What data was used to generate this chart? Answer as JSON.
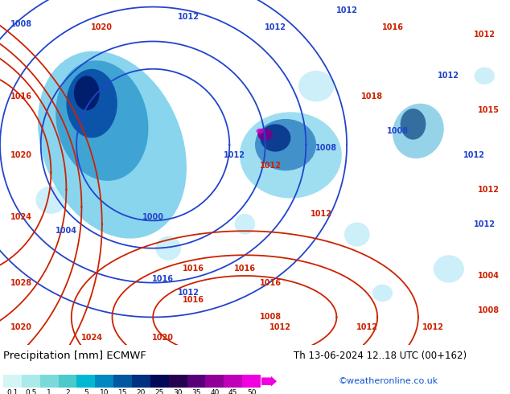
{
  "title_left": "Precipitation [mm] ECMWF",
  "title_right": "Th 13-06-2024 12..18 UTC (00+162)",
  "credit": "©weatheronline.co.uk",
  "colorbar_values": [
    "0.1",
    "0.5",
    "1",
    "2",
    "5",
    "10",
    "15",
    "20",
    "25",
    "30",
    "35",
    "40",
    "45",
    "50"
  ],
  "colorbar_colors": [
    "#d4f5f5",
    "#aaeaea",
    "#7adada",
    "#4acaca",
    "#00b8d4",
    "#0088c0",
    "#0058a0",
    "#003080",
    "#000858",
    "#280050",
    "#580078",
    "#900098",
    "#c000b8",
    "#f000e0"
  ],
  "bg_color": "#ffffff",
  "legend_bg": "#f0f0f0",
  "fig_width": 6.34,
  "fig_height": 4.9,
  "dpi": 100,
  "map_green": "#c8e8b0",
  "map_sea": "#d0eef8",
  "blue_isobar": "#2244cc",
  "red_isobar": "#cc2200",
  "precip_light": "#80d8f0",
  "precip_mid": "#2288cc",
  "precip_dark": "#001060",
  "precip_purple": "#600080"
}
